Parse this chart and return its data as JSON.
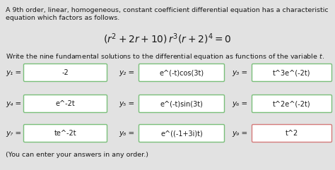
{
  "title_line1": "A 9th order, linear, homogeneous, constant coefficient differential equation has a characteristic",
  "title_line2": "equation which factors as follows.",
  "instruction": "Write the nine fundamental solutions to the differential equation as functions of the variable $t$.",
  "footer": "(You can enter your answers in any order.)",
  "solutions": [
    {
      "label": "y₁",
      "value": "-2",
      "border": "#7abf7a"
    },
    {
      "label": "y₂",
      "value": "e^(-t)cos(3t)",
      "border": "#7abf7a"
    },
    {
      "label": "y₃",
      "value": "t^3e^(-2t)",
      "border": "#7abf7a"
    },
    {
      "label": "y₄",
      "value": "e^-2t",
      "border": "#7abf7a"
    },
    {
      "label": "y₅",
      "value": "e^(-t)sin(3t)",
      "border": "#7abf7a"
    },
    {
      "label": "y₆",
      "value": "t^2e^(-2t)",
      "border": "#7abf7a"
    },
    {
      "label": "y₇",
      "value": "te^-2t",
      "border": "#7abf7a"
    },
    {
      "label": "y₈",
      "value": "e^((-1+3i)t)",
      "border": "#7abf7a"
    },
    {
      "label": "y₉",
      "value": "t^2",
      "border": "#d47a7a"
    }
  ],
  "bg_color": "#e2e2e2",
  "box_fill": "#ffffff",
  "text_color": "#1a1a1a",
  "label_color": "#333333"
}
